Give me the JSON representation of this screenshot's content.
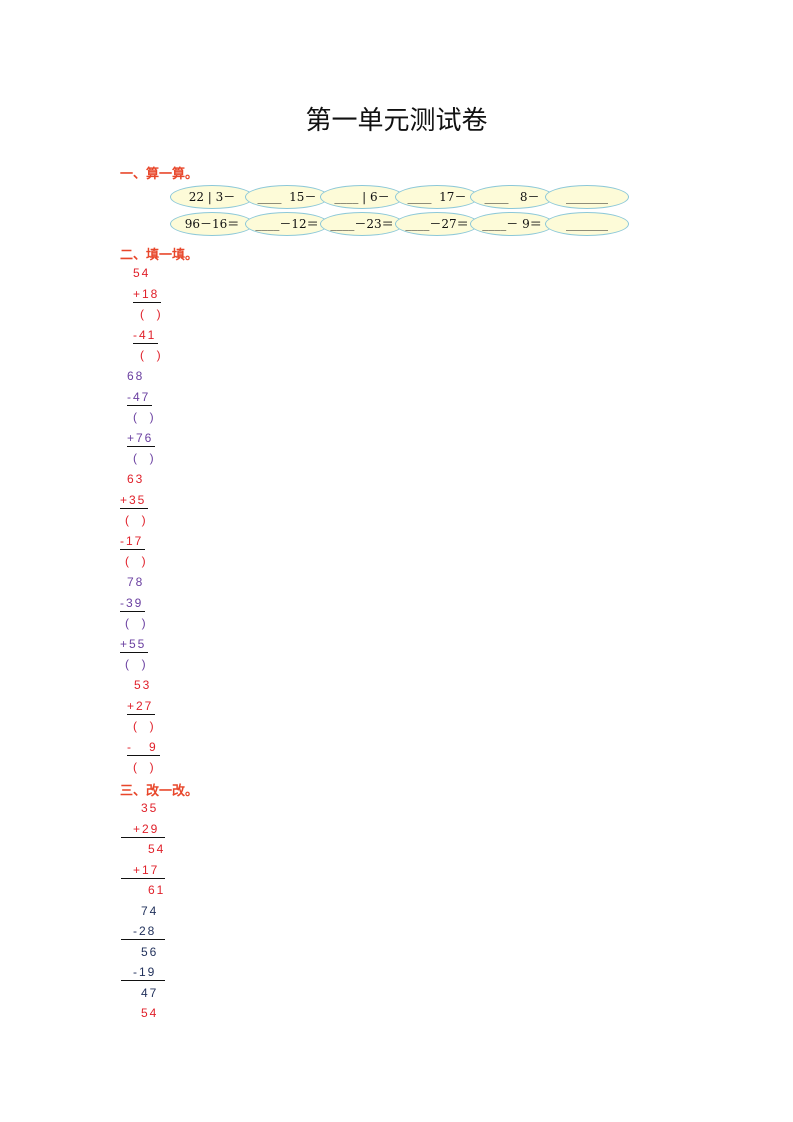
{
  "title": "第一单元测试卷",
  "section1": {
    "heading": "一、算一算。",
    "rows": [
      [
        "22 | 3－",
        "____  15－",
        "____ | 6－",
        "____  17－",
        "____   8－",
        "_______"
      ],
      [
        "96－16＝",
        "____－12＝",
        "____－23＝",
        "____－27＝",
        "____－ 9＝",
        "_______"
      ]
    ]
  },
  "section2": {
    "heading": "二、填一填。",
    "lines": [
      {
        "text": "54",
        "color": "red",
        "ul": false
      },
      {
        "text": "+18",
        "color": "red",
        "ul": true
      },
      {
        "text": "(  )",
        "color": "red",
        "ul": false
      },
      {
        "text": "-41",
        "color": "red",
        "ul": true
      },
      {
        "text": "(  )",
        "color": "red",
        "ul": false
      },
      {
        "text": "68",
        "color": "purple",
        "ul": false
      },
      {
        "text": "-47",
        "color": "purple",
        "ul": true
      },
      {
        "text": "(  )",
        "color": "purple",
        "ul": false
      },
      {
        "text": "+76",
        "color": "purple",
        "ul": true
      },
      {
        "text": "(  )",
        "color": "purple",
        "ul": false
      },
      {
        "text": "63",
        "color": "red",
        "ul": false
      },
      {
        "text": "+35",
        "color": "red",
        "ul": true
      },
      {
        "text": "(  )",
        "color": "red",
        "ul": false
      },
      {
        "text": "-17",
        "color": "red",
        "ul": true
      },
      {
        "text": "(  )",
        "color": "red",
        "ul": false
      },
      {
        "text": "78",
        "color": "purple",
        "ul": false
      },
      {
        "text": "-39",
        "color": "purple",
        "ul": true
      },
      {
        "text": "(  )",
        "color": "purple",
        "ul": false
      },
      {
        "text": "+55",
        "color": "purple",
        "ul": true
      },
      {
        "text": "(  )",
        "color": "purple",
        "ul": false
      },
      {
        "text": "53",
        "color": "red",
        "ul": false
      },
      {
        "text": "+27",
        "color": "red",
        "ul": true
      },
      {
        "text": "(  )",
        "color": "red",
        "ul": false
      },
      {
        "text": "-   9",
        "color": "red",
        "ul": true
      },
      {
        "text": "(  )",
        "color": "red",
        "ul": false
      }
    ]
  },
  "section3": {
    "heading": "三、改一改。",
    "lines": [
      {
        "text": "35",
        "color": "red",
        "ul": false
      },
      {
        "text": "+29",
        "color": "red",
        "ul": true
      },
      {
        "text": "54",
        "color": "red",
        "ul": false
      },
      {
        "text": "+17",
        "color": "red",
        "ul": true
      },
      {
        "text": "61",
        "color": "red",
        "ul": false
      },
      {
        "text": "74",
        "color": "navy",
        "ul": false
      },
      {
        "text": "-28",
        "color": "navy",
        "ul": true
      },
      {
        "text": "56",
        "color": "navy",
        "ul": false
      },
      {
        "text": "-19",
        "color": "navy",
        "ul": true
      },
      {
        "text": "47",
        "color": "navy",
        "ul": false
      },
      {
        "text": "54",
        "color": "red",
        "ul": false
      }
    ]
  },
  "colors": {
    "heading": "#e8462a",
    "red": "#e0202a",
    "purple": "#6a3fa0",
    "navy": "#1f2f5a",
    "ellipse_fill": "#fdfbd8",
    "ellipse_border": "#8cc8d8"
  }
}
